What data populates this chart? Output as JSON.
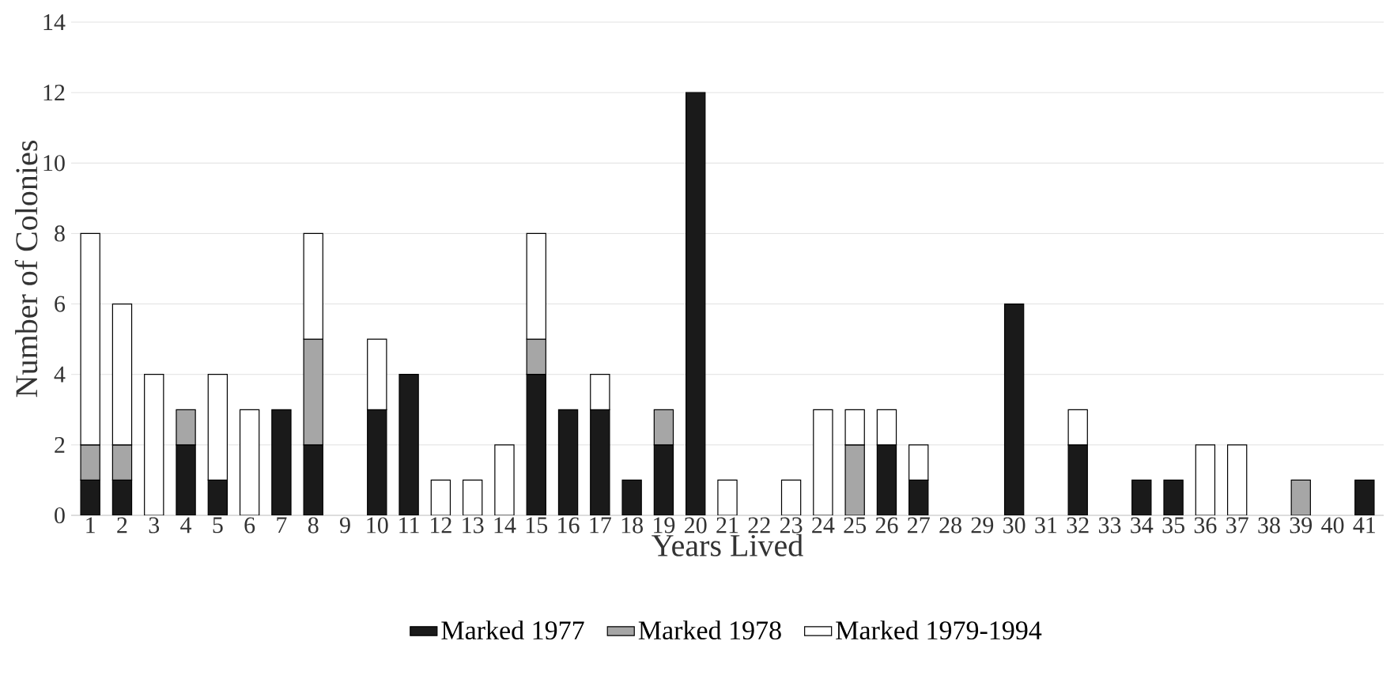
{
  "chart_data": {
    "type": "bar",
    "stacked": true,
    "xlabel": "Years Lived",
    "ylabel": "Number of Colonies",
    "categories": [
      "1",
      "2",
      "3",
      "4",
      "5",
      "6",
      "7",
      "8",
      "9",
      "10",
      "11",
      "12",
      "13",
      "14",
      "15",
      "16",
      "17",
      "18",
      "19",
      "20",
      "21",
      "22",
      "23",
      "24",
      "25",
      "26",
      "27",
      "28",
      "29",
      "30",
      "31",
      "32",
      "33",
      "34",
      "35",
      "36",
      "37",
      "38",
      "39",
      "40",
      "41"
    ],
    "series": [
      {
        "name": "Marked 1977",
        "color": "#1a1a1a",
        "values": [
          1,
          1,
          0,
          2,
          1,
          0,
          3,
          2,
          0,
          3,
          4,
          0,
          0,
          0,
          4,
          3,
          3,
          1,
          2,
          12,
          0,
          0,
          0,
          0,
          0,
          2,
          1,
          0,
          0,
          6,
          0,
          2,
          0,
          1,
          1,
          0,
          0,
          0,
          0,
          0,
          1
        ]
      },
      {
        "name": "Marked 1978",
        "color": "#a6a6a6",
        "values": [
          1,
          1,
          0,
          1,
          0,
          0,
          0,
          3,
          0,
          0,
          0,
          0,
          0,
          0,
          1,
          0,
          0,
          0,
          1,
          0,
          0,
          0,
          0,
          0,
          2,
          0,
          0,
          0,
          0,
          0,
          0,
          0,
          0,
          0,
          0,
          0,
          0,
          0,
          1,
          0,
          0
        ]
      },
      {
        "name": "Marked 1979-1994",
        "color": "#ffffff",
        "values": [
          6,
          4,
          4,
          0,
          3,
          3,
          0,
          3,
          0,
          2,
          0,
          1,
          1,
          2,
          3,
          0,
          1,
          0,
          0,
          0,
          1,
          0,
          1,
          3,
          1,
          1,
          1,
          0,
          0,
          0,
          0,
          1,
          0,
          0,
          0,
          2,
          2,
          0,
          0,
          0,
          0
        ]
      }
    ],
    "ylim": [
      0,
      14
    ],
    "yticks": [
      0,
      2,
      4,
      6,
      8,
      10,
      12,
      14
    ],
    "grid": "y",
    "legend": "bottom"
  }
}
